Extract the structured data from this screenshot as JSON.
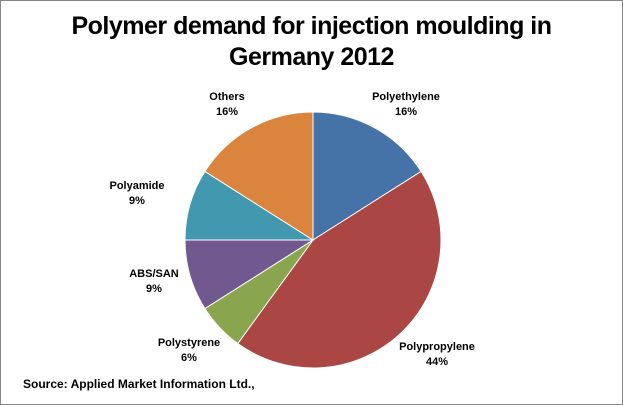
{
  "chart_data": {
    "type": "pie",
    "title_lines": [
      "Polymer demand for injection moulding in",
      "Germany 2012"
    ],
    "slices": [
      {
        "name": "Polyethylene",
        "value": 16,
        "label": "16%",
        "color": "#4572a7"
      },
      {
        "name": "Polypropylene",
        "value": 44,
        "label": "44%",
        "color": "#aa4643"
      },
      {
        "name": "Polystyrene",
        "value": 6,
        "label": "6%",
        "color": "#89a54e"
      },
      {
        "name": "ABS/SAN",
        "value": 9,
        "label": "9%",
        "color": "#71588f"
      },
      {
        "name": "Polyamide",
        "value": 9,
        "label": "9%",
        "color": "#4198af"
      },
      {
        "name": "Others",
        "value": 16,
        "label": "16%",
        "color": "#db843d"
      }
    ],
    "legend": "none",
    "source": "Source: Applied Market Information Ltd.,"
  }
}
